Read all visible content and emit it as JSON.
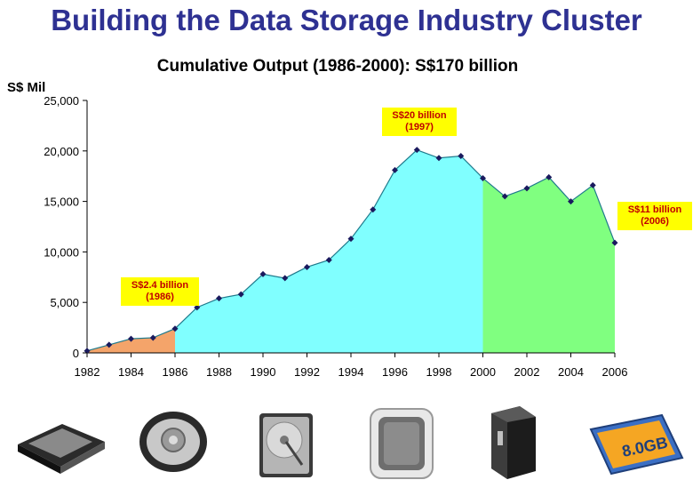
{
  "header": {
    "title": "Building the Data Storage Industry Cluster",
    "subtitle": "Cumulative Output (1986-2000): S$170 billion",
    "unit_label": "S$ Mil"
  },
  "callouts": [
    {
      "line1": "S$20 billion",
      "line2": "(1997)"
    },
    {
      "line1": "S$11 billion",
      "line2": "(2006)"
    },
    {
      "line1": "S$2.4 billion",
      "line2": "(1986)"
    }
  ],
  "products": [
    {
      "icon": "portable-hard-drive-icon"
    },
    {
      "icon": "portable-media-player-icon"
    },
    {
      "icon": "hard-disk-drive-icon"
    },
    {
      "icon": "network-storage-device-icon"
    },
    {
      "icon": "external-drive-icon"
    },
    {
      "icon": "compactflash-card-icon",
      "label": "8.0GB"
    }
  ],
  "chart_data": {
    "type": "area",
    "title": "Cumulative Output (1986-2000): S$170 billion",
    "ylabel": "S$ Mil",
    "xlabel": "",
    "x": [
      1982,
      1983,
      1984,
      1985,
      1986,
      1987,
      1988,
      1989,
      1990,
      1991,
      1992,
      1993,
      1994,
      1995,
      1996,
      1997,
      1998,
      1999,
      2000,
      2001,
      2002,
      2003,
      2004,
      2005,
      2006
    ],
    "values": [
      200,
      800,
      1400,
      1500,
      2400,
      4500,
      5400,
      5800,
      7800,
      7400,
      8500,
      9200,
      11300,
      14200,
      18100,
      20100,
      19300,
      19500,
      17300,
      15500,
      16300,
      17400,
      15000,
      16600,
      10900
    ],
    "segments": [
      {
        "from": 1982,
        "to": 1986,
        "color": "#f4a46a"
      },
      {
        "from": 1986,
        "to": 2000,
        "color": "#80ffff"
      },
      {
        "from": 2000,
        "to": 2006,
        "color": "#80ff80"
      }
    ],
    "xticks": [
      "1982",
      "1984",
      "1986",
      "1988",
      "1990",
      "1992",
      "1994",
      "1996",
      "1998",
      "2000",
      "2002",
      "2004",
      "2006"
    ],
    "yticks": [
      "0",
      "5,000",
      "10,000",
      "15,000",
      "20,000",
      "25,000"
    ],
    "ylim": [
      0,
      25000
    ],
    "xlim": [
      1982,
      2006
    ],
    "grid": false,
    "line_color": "#1f7a8c",
    "marker_color": "#1a1a5e"
  }
}
